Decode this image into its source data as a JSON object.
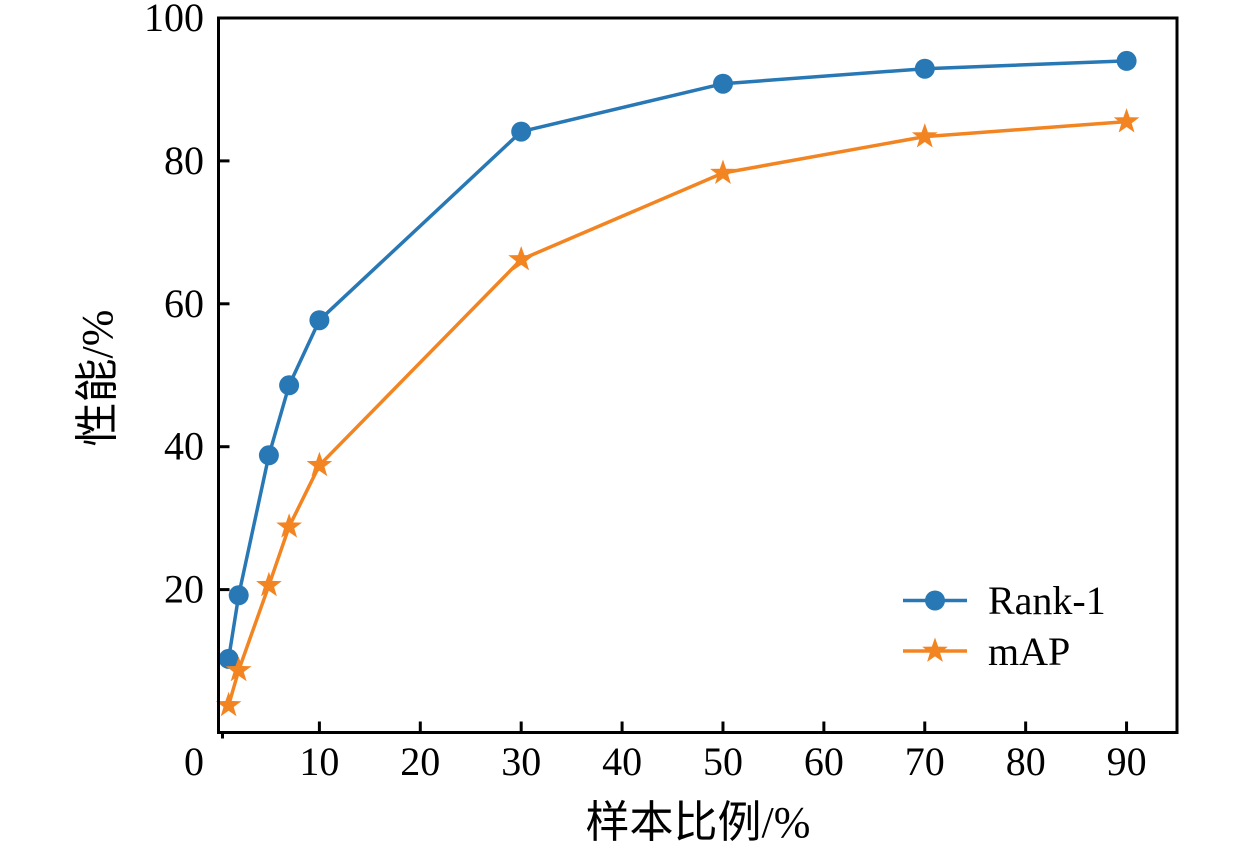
{
  "figure": {
    "background": "#ffffff",
    "axis_color": "#000000"
  },
  "chart_data": {
    "type": "line",
    "title": "",
    "xlabel": "样本比例/%",
    "ylabel": "性能/%",
    "xlim": [
      0,
      95
    ],
    "ylim": [
      0,
      100
    ],
    "xticks": [
      0,
      10,
      20,
      30,
      40,
      50,
      60,
      70,
      80,
      90
    ],
    "yticks": [
      0,
      20,
      40,
      60,
      80,
      100
    ],
    "origin_label": "0",
    "grid": false,
    "legend": {
      "position": "lower-right-inside",
      "frame": false
    },
    "x": [
      1,
      2,
      5,
      7,
      10,
      30,
      50,
      70,
      90
    ],
    "series": [
      {
        "name": "Rank-1",
        "marker": "circle",
        "color": "#2878b5",
        "values": [
          10.3,
          19.2,
          38.8,
          48.6,
          57.7,
          84.1,
          90.8,
          92.9,
          94.0
        ]
      },
      {
        "name": "mAP",
        "marker": "star",
        "color": "#f28522",
        "values": [
          3.8,
          8.7,
          20.6,
          28.8,
          37.4,
          66.2,
          78.3,
          83.4,
          85.5
        ]
      }
    ]
  }
}
